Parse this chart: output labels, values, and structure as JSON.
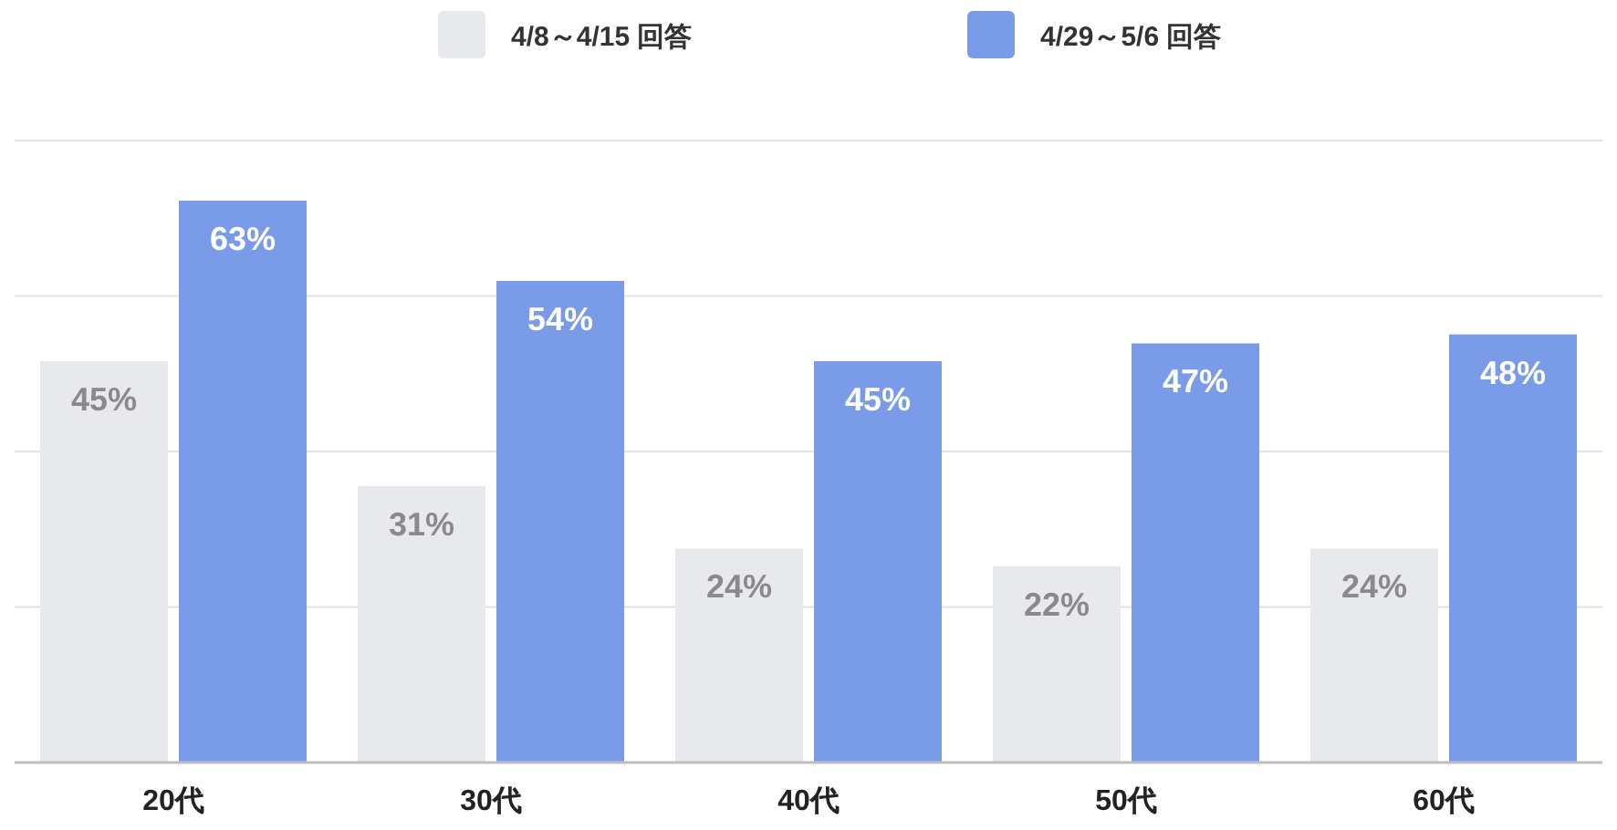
{
  "chart_data": {
    "type": "bar",
    "categories": [
      "20代",
      "30代",
      "40代",
      "50代",
      "60代"
    ],
    "series": [
      {
        "name": "4/8～4/15 回答",
        "color": "#e8e9ec",
        "values": [
          45,
          31,
          24,
          22,
          24
        ],
        "value_labels": [
          "45%",
          "31%",
          "24%",
          "22%",
          "24%"
        ]
      },
      {
        "name": "4/29～5/6 回答",
        "color": "#7a9ce8",
        "values": [
          63,
          54,
          45,
          47,
          48
        ],
        "value_labels": [
          "63%",
          "54%",
          "45%",
          "47%",
          "48%"
        ]
      }
    ],
    "tick_labels": "x",
    "grid": true,
    "legend": "top"
  }
}
